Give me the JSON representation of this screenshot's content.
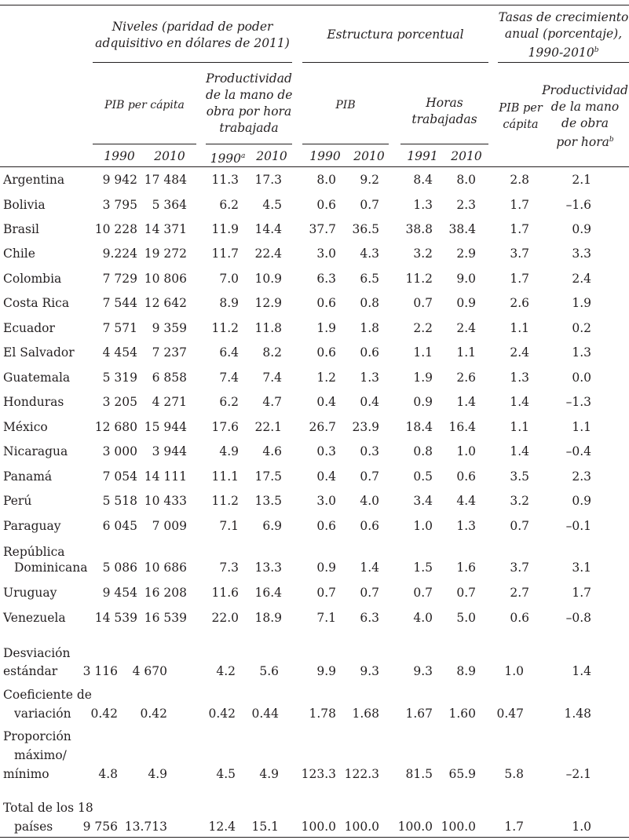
{
  "header": {
    "group_levels": "Niveles (paridad de poder adquisitivo en dólares de 2011)",
    "group_levels_l1": "Niveles (paridad de poder",
    "group_levels_l2": "adquisitivo en dólares de 2011)",
    "group_structure": "Estructura porcentual",
    "group_growth_l1": "Tasas de crecimiento",
    "group_growth_l2": "anual (porcentaje),",
    "group_growth_l3": "1990-2010",
    "group_growth_sup": "b",
    "sub_pib_pc": "PIB per cápita",
    "sub_prod_l1": "Productividad",
    "sub_prod_l2": "de la mano de",
    "sub_prod_l3": "obra por hora",
    "sub_prod_l4": "trabajada",
    "sub_pib": "PIB",
    "sub_horas_l1": "Horas",
    "sub_horas_l2": "trabajadas",
    "sub_g_pib_l1": "PIB per",
    "sub_g_pib_l2": "cápita",
    "sub_g_prod_l1": "Productividad",
    "sub_g_prod_l2": "de la mano",
    "sub_g_prod_l3": "de obra",
    "sub_g_prod_l4": "por hora",
    "sub_g_prod_sup": "b",
    "years": [
      "1990",
      "2010",
      "1990",
      "2010",
      "1990",
      "2010",
      "1991",
      "2010"
    ],
    "year_sup_a": "a"
  },
  "rows": [
    {
      "label": "Argentina",
      "v": [
        "9 942",
        "17 484",
        "11.3",
        "17.3",
        "8.0",
        "9.2",
        "8.4",
        "8.0",
        "2.8",
        "2.1"
      ]
    },
    {
      "label": "Bolivia",
      "v": [
        "3 795",
        "5 364",
        "6.2",
        "4.5",
        "0.6",
        "0.7",
        "1.3",
        "2.3",
        "1.7",
        "–1.6"
      ]
    },
    {
      "label": "Brasil",
      "v": [
        "10 228",
        "14 371",
        "11.9",
        "14.4",
        "37.7",
        "36.5",
        "38.8",
        "38.4",
        "1.7",
        "0.9"
      ]
    },
    {
      "label": "Chile",
      "v": [
        "9.224",
        "19 272",
        "11.7",
        "22.4",
        "3.0",
        "4.3",
        "3.2",
        "2.9",
        "3.7",
        "3.3"
      ]
    },
    {
      "label": "Colombia",
      "v": [
        "7 729",
        "10 806",
        "7.0",
        "10.9",
        "6.3",
        "6.5",
        "11.2",
        "9.0",
        "1.7",
        "2.4"
      ]
    },
    {
      "label": "Costa Rica",
      "v": [
        "7 544",
        "12 642",
        "8.9",
        "12.9",
        "0.6",
        "0.8",
        "0.7",
        "0.9",
        "2.6",
        "1.9"
      ]
    },
    {
      "label": "Ecuador",
      "v": [
        "7 571",
        "9 359",
        "11.2",
        "11.8",
        "1.9",
        "1.8",
        "2.2",
        "2.4",
        "1.1",
        "0.2"
      ]
    },
    {
      "label": "El Salvador",
      "v": [
        "4 454",
        "7 237",
        "6.4",
        "8.2",
        "0.6",
        "0.6",
        "1.1",
        "1.1",
        "2.4",
        "1.3"
      ]
    },
    {
      "label": "Guatemala",
      "v": [
        "5 319",
        "6 858",
        "7.4",
        "7.4",
        "1.2",
        "1.3",
        "1.9",
        "2.6",
        "1.3",
        "0.0"
      ]
    },
    {
      "label": "Honduras",
      "v": [
        "3 205",
        "4 271",
        "6.2",
        "4.7",
        "0.4",
        "0.4",
        "0.9",
        "1.4",
        "1.4",
        "–1.3"
      ]
    },
    {
      "label": "México",
      "v": [
        "12 680",
        "15 944",
        "17.6",
        "22.1",
        "26.7",
        "23.9",
        "18.4",
        "16.4",
        "1.1",
        "1.1"
      ]
    },
    {
      "label": "Nicaragua",
      "v": [
        "3 000",
        "3 944",
        "4.9",
        "4.6",
        "0.3",
        "0.3",
        "0.8",
        "1.0",
        "1.4",
        "–0.4"
      ]
    },
    {
      "label": "Panamá",
      "v": [
        "7 054",
        "14 111",
        "11.1",
        "17.5",
        "0.4",
        "0.7",
        "0.5",
        "0.6",
        "3.5",
        "2.3"
      ]
    },
    {
      "label": "Perú",
      "v": [
        "5 518",
        "10 433",
        "11.2",
        "13.5",
        "3.0",
        "4.0",
        "3.4",
        "4.4",
        "3.2",
        "0.9"
      ]
    },
    {
      "label": "Paraguay",
      "v": [
        "6 045",
        "7 009",
        "7.1",
        "6.9",
        "0.6",
        "0.6",
        "1.0",
        "1.3",
        "0.7",
        "–0.1"
      ]
    },
    {
      "label": "República Dominicana",
      "label_l1": "República",
      "label_l2": "Dominicana",
      "v": [
        "5 086",
        "10 686",
        "7.3",
        "13.3",
        "0.9",
        "1.4",
        "1.5",
        "1.6",
        "3.7",
        "3.1"
      ]
    },
    {
      "label": "Uruguay",
      "v": [
        "9 454",
        "16 208",
        "11.6",
        "16.4",
        "0.7",
        "0.7",
        "0.7",
        "0.7",
        "2.7",
        "1.7"
      ]
    },
    {
      "label": "Venezuela",
      "v": [
        "14 539",
        "16 539",
        "22.0",
        "18.9",
        "7.1",
        "6.3",
        "4.0",
        "5.0",
        "0.6",
        "–0.8"
      ]
    }
  ],
  "stats": [
    {
      "label_l1": "Desviación",
      "label_l2": "estándar",
      "v": [
        "3 116",
        "4 670",
        "4.2",
        "5.6",
        "9.9",
        "9.3",
        "9.3",
        "8.9",
        "1.0",
        "1.4"
      ]
    },
    {
      "label_l1": "Coeficiente de",
      "label_l2": "variación",
      "v": [
        "0.42",
        "0.42",
        "0.42",
        "0.44",
        "1.78",
        "1.68",
        "1.67",
        "1.60",
        "0.47",
        "1.48"
      ]
    },
    {
      "label_l1": "Proporción",
      "label_l2": "máximo/",
      "label_l3": "mínimo",
      "v": [
        "4.8",
        "4.9",
        "4.5",
        "4.9",
        "123.3",
        "122.3",
        "81.5",
        "65.9",
        "5.8",
        "–2.1"
      ]
    },
    {
      "label_l1": "Total de los 18",
      "label_l2": "países",
      "v": [
        "9 756",
        "13.713",
        "12.4",
        "15.1",
        "100.0",
        "100.0",
        "100.0",
        "100.0",
        "1.7",
        "1.0"
      ]
    }
  ]
}
